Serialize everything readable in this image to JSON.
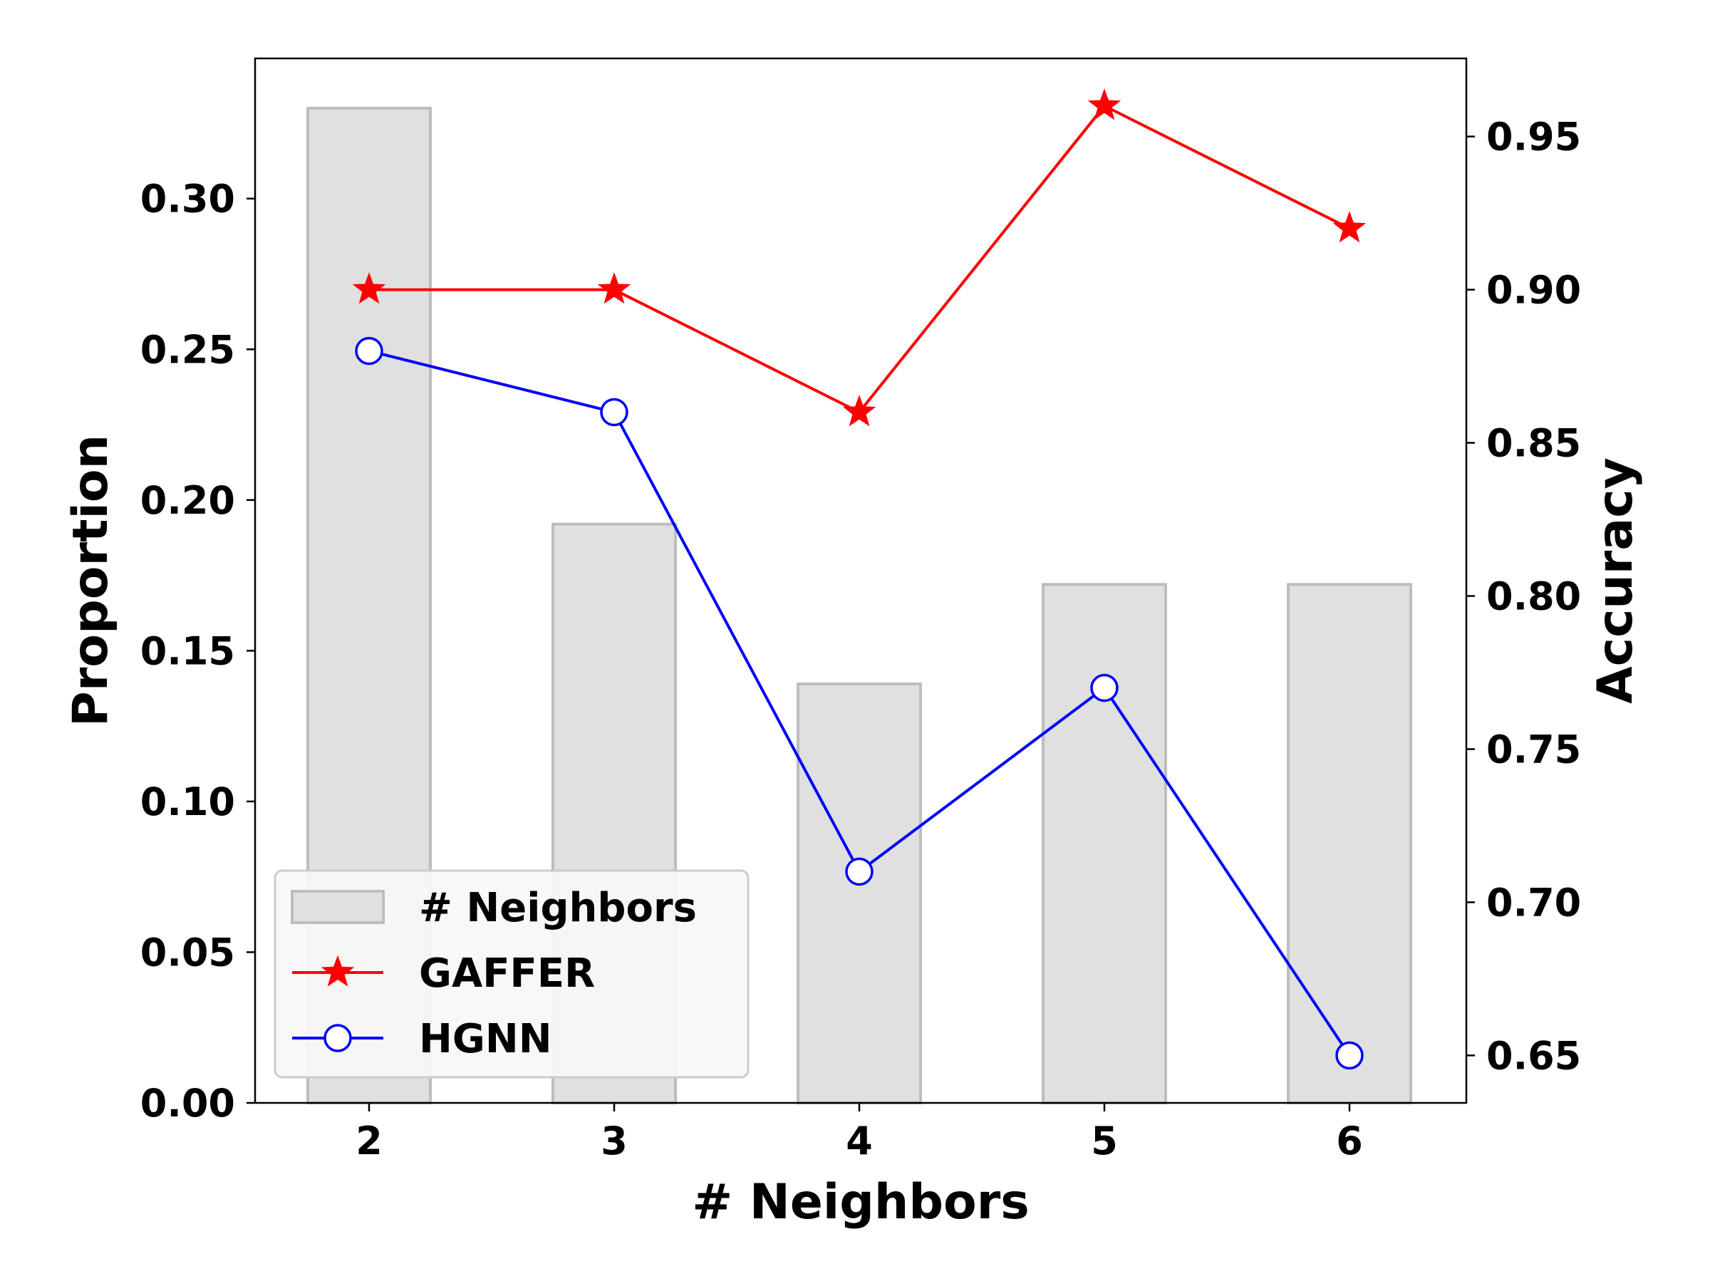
{
  "chart_data": {
    "type": "bar",
    "categories": [
      "2",
      "3",
      "4",
      "5",
      "6"
    ],
    "bar_series": {
      "name": "# Neighbors",
      "values": [
        0.33,
        0.192,
        0.139,
        0.172,
        0.172
      ],
      "axis": "left",
      "color": "#e0e0e0",
      "edge_color": "#bdbdbd"
    },
    "line_series": [
      {
        "name": "GAFFER",
        "values": [
          0.9,
          0.9,
          0.86,
          0.96,
          0.92
        ],
        "axis": "right",
        "color": "#ff0000",
        "marker": "star"
      },
      {
        "name": "HGNN",
        "values": [
          0.88,
          0.86,
          0.71,
          0.77,
          0.65
        ],
        "axis": "right",
        "color": "#0000ff",
        "marker": "open-circle"
      }
    ],
    "xlabel": "# Neighbors",
    "ylabel": "Proportion",
    "y2label": "Accuracy",
    "ylim": [
      0,
      0.3465
    ],
    "y2lim": [
      0.6345,
      0.9755
    ],
    "y_ticks": [
      "0.00",
      "0.05",
      "0.10",
      "0.15",
      "0.20",
      "0.25",
      "0.30"
    ],
    "y_tick_values": [
      0,
      0.05,
      0.1,
      0.15,
      0.2,
      0.25,
      0.3
    ],
    "y2_ticks": [
      "0.65",
      "0.70",
      "0.75",
      "0.80",
      "0.85",
      "0.90",
      "0.95"
    ],
    "y2_tick_values": [
      0.65,
      0.7,
      0.75,
      0.8,
      0.85,
      0.9,
      0.95
    ],
    "grid": false,
    "legend_position": "lower-left",
    "legend_entries": [
      "# Neighbors",
      "GAFFER",
      "HGNN"
    ]
  }
}
